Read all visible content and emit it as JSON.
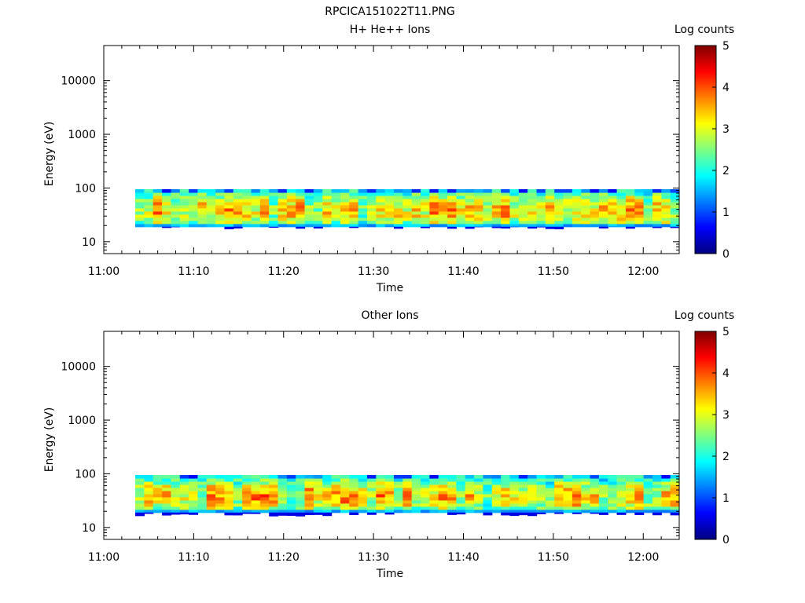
{
  "figure_title": "RPCICA151022T11.PNG",
  "colormap_stops": [
    "#00007f",
    "#0000ff",
    "#007fff",
    "#00ffff",
    "#7fff7f",
    "#ffff00",
    "#ff7f00",
    "#ff0000",
    "#7f0000"
  ],
  "chart_data": [
    {
      "type": "heatmap",
      "title": "H+ He++ Ions",
      "xlabel": "Time",
      "ylabel": "Energy (eV)",
      "x_ticks": [
        "11:00",
        "11:10",
        "11:20",
        "11:30",
        "11:40",
        "11:50",
        "12:00"
      ],
      "xlim_minutes": [
        0,
        64
      ],
      "y_scale": "log",
      "y_ticks": [
        "10",
        "100",
        "1000",
        "10000"
      ],
      "ylim": [
        6,
        45000
      ],
      "colorbar": {
        "label": "Log counts",
        "ticks": [
          "0",
          "1",
          "2",
          "3",
          "4",
          "5"
        ],
        "range": [
          0,
          5
        ]
      },
      "data_start_minute": 3.5,
      "data_end_minute": 64,
      "data_columns": 61,
      "energy_max": 95,
      "energy_min": 17,
      "seed": 11
    },
    {
      "type": "heatmap",
      "title": "Other Ions",
      "xlabel": "Time",
      "ylabel": "Energy (eV)",
      "x_ticks": [
        "11:00",
        "11:10",
        "11:20",
        "11:30",
        "11:40",
        "11:50",
        "12:00"
      ],
      "xlim_minutes": [
        0,
        64
      ],
      "y_scale": "log",
      "y_ticks": [
        "10",
        "100",
        "1000",
        "10000"
      ],
      "ylim": [
        6,
        45000
      ],
      "colorbar": {
        "label": "Log counts",
        "ticks": [
          "0",
          "1",
          "2",
          "3",
          "4",
          "5"
        ],
        "range": [
          0,
          5
        ]
      },
      "data_start_minute": 3.5,
      "data_end_minute": 64,
      "data_columns": 61,
      "energy_max": 95,
      "energy_min": 16,
      "seed": 29
    }
  ]
}
